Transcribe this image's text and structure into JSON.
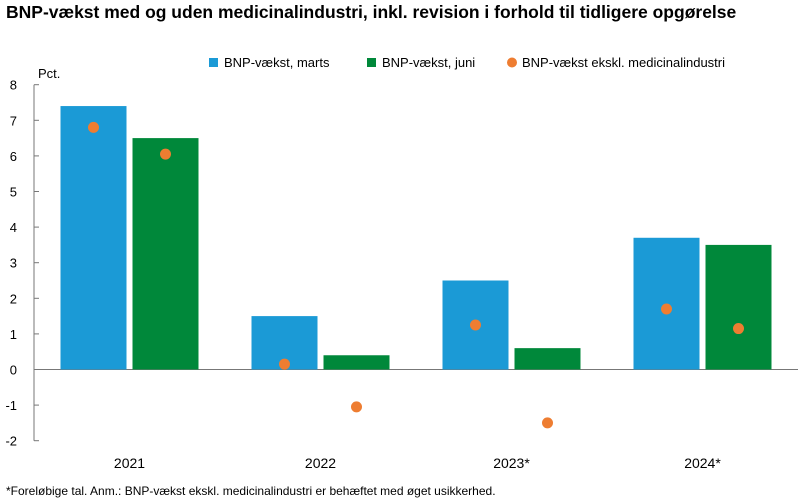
{
  "chart_data": {
    "type": "bar",
    "title": "BNP-vækst med og uden medicinalindustri, inkl. revision i forhold til tidligere opgørelse",
    "ylabel": "Pct.",
    "xlabel": "",
    "ylim": [
      -2,
      8
    ],
    "yticks": [
      8,
      7,
      6,
      5,
      4,
      3,
      2,
      1,
      0,
      -1,
      -2
    ],
    "categories": [
      "2021",
      "2022",
      "2023*",
      "2024*"
    ],
    "series": [
      {
        "name": "BNP-vækst, marts",
        "kind": "bar",
        "color": "#1b9ad6",
        "values": [
          7.4,
          1.5,
          2.5,
          3.7
        ]
      },
      {
        "name": "BNP-vækst, juni",
        "kind": "bar",
        "color": "#00883a",
        "values": [
          6.5,
          0.4,
          0.6,
          3.5
        ]
      },
      {
        "name": "BNP-vækst ekskl. medicinalindustri",
        "kind": "scatter",
        "color": "#ee7d31",
        "values": [
          6.8,
          0.15,
          1.25,
          1.7
        ],
        "values_juni": [
          6.05,
          -1.05,
          -1.5,
          1.15
        ]
      }
    ],
    "legend_position": "top-right",
    "footnote": "*Foreløbige tal. Anm.: BNP-vækst ekskl. medicinalindustri er behæftet med øget usikkerhed."
  }
}
